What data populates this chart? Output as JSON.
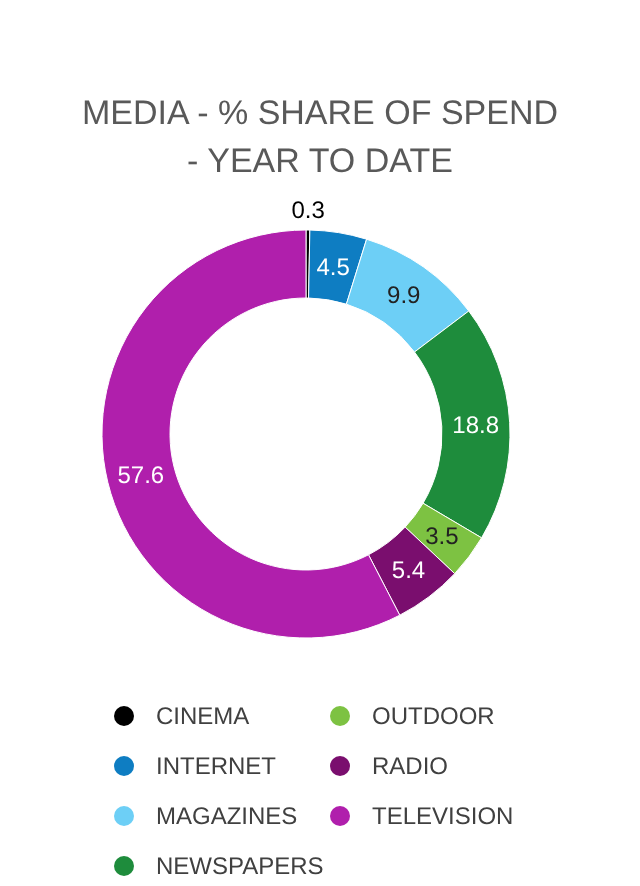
{
  "chart_data": {
    "type": "donut",
    "title": "MEDIA - % SHARE OF SPEND -  YEAR TO DATE",
    "categories": [
      "CINEMA",
      "INTERNET",
      "MAGAZINES",
      "NEWSPAPERS",
      "OUTDOOR",
      "RADIO",
      "TELEVISION"
    ],
    "values": [
      0.3,
      4.5,
      9.9,
      18.8,
      3.5,
      5.4,
      57.6
    ],
    "colors": [
      "#000000",
      "#0e7dc2",
      "#6dcff6",
      "#1e8c3c",
      "#7dc242",
      "#7a0e6e",
      "#b01fac"
    ],
    "data_labels": true,
    "legend": "bottom"
  }
}
